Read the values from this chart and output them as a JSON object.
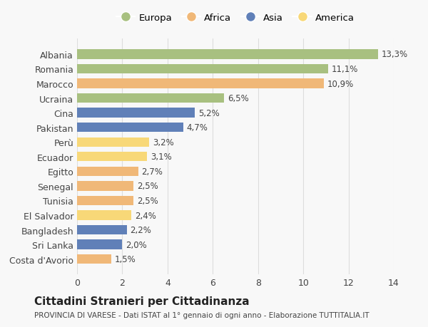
{
  "categories": [
    "Albania",
    "Romania",
    "Marocco",
    "Ucraina",
    "Cina",
    "Pakistan",
    "Perù",
    "Ecuador",
    "Egitto",
    "Senegal",
    "Tunisia",
    "El Salvador",
    "Bangladesh",
    "Sri Lanka",
    "Costa d'Avorio"
  ],
  "values": [
    13.3,
    11.1,
    10.9,
    6.5,
    5.2,
    4.7,
    3.2,
    3.1,
    2.7,
    2.5,
    2.5,
    2.4,
    2.2,
    2.0,
    1.5
  ],
  "labels": [
    "13,3%",
    "11,1%",
    "10,9%",
    "6,5%",
    "5,2%",
    "4,7%",
    "3,2%",
    "3,1%",
    "2,7%",
    "2,5%",
    "2,5%",
    "2,4%",
    "2,2%",
    "2,0%",
    "1,5%"
  ],
  "continents": [
    "Europa",
    "Europa",
    "Africa",
    "Europa",
    "Asia",
    "Asia",
    "America",
    "America",
    "Africa",
    "Africa",
    "Africa",
    "America",
    "Asia",
    "Asia",
    "Africa"
  ],
  "colors": {
    "Europa": "#a8c080",
    "Africa": "#f0b878",
    "Asia": "#6080b8",
    "America": "#f8d878"
  },
  "legend_order": [
    "Europa",
    "Africa",
    "Asia",
    "America"
  ],
  "xlim": [
    0,
    14
  ],
  "xticks": [
    0,
    2,
    4,
    6,
    8,
    10,
    12,
    14
  ],
  "title": "Cittadini Stranieri per Cittadinanza",
  "subtitle": "PROVINCIA DI VARESE - Dati ISTAT al 1° gennaio di ogni anno - Elaborazione TUTTITALIA.IT",
  "bg_color": "#f8f8f8",
  "grid_color": "#dddddd"
}
